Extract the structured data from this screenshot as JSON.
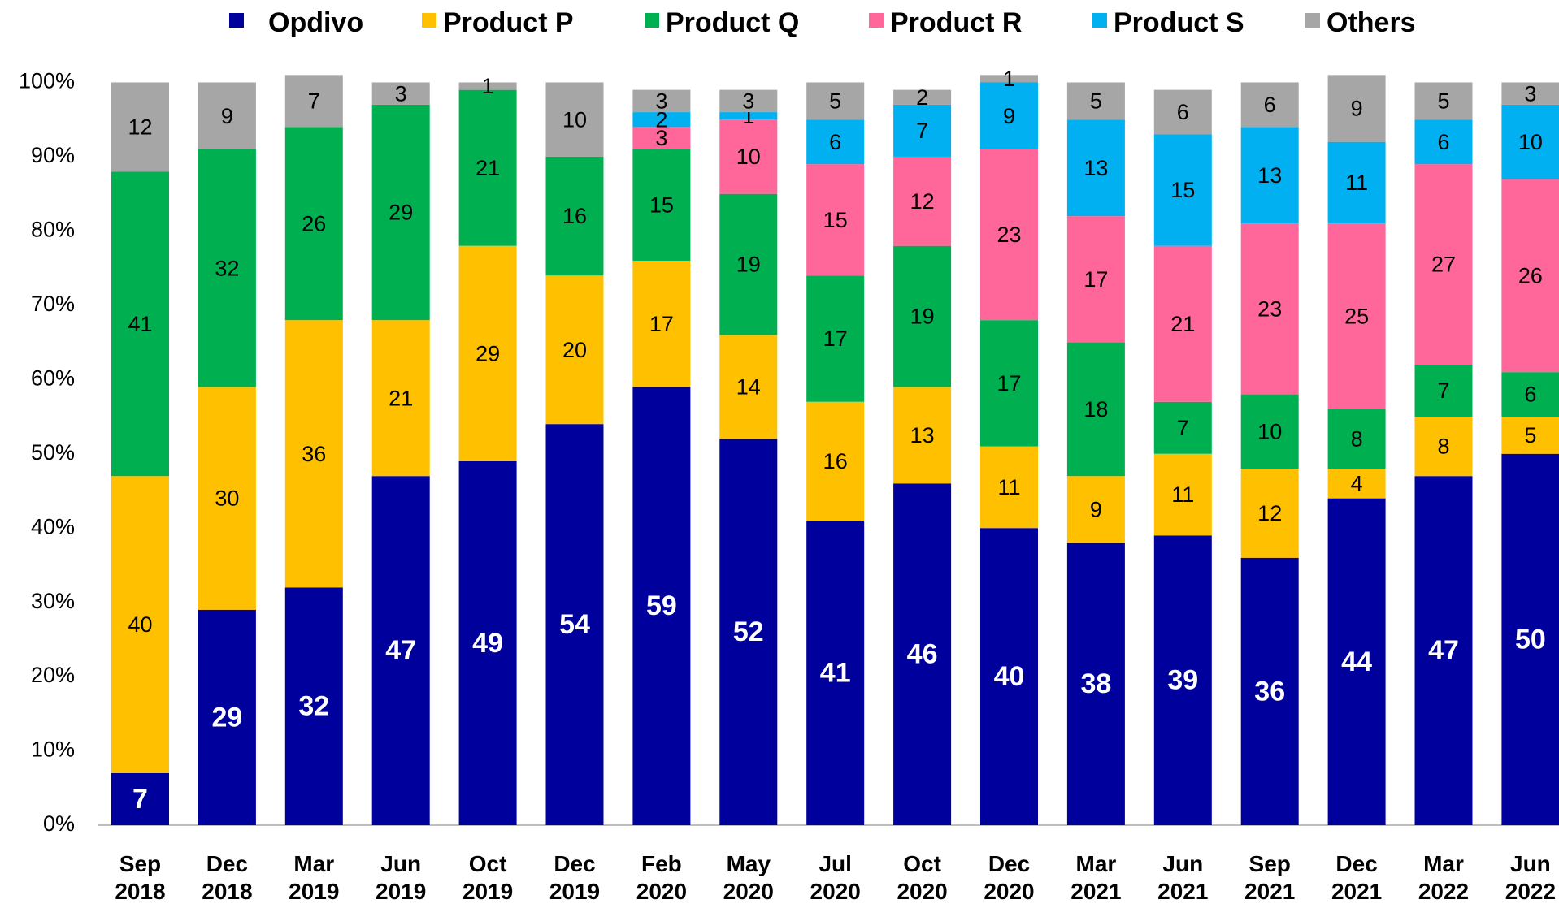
{
  "chart_data": {
    "type": "stacked_bar",
    "categories": [
      "Sep 2018",
      "Dec 2018",
      "Mar 2019",
      "Jun 2019",
      "Oct 2019",
      "Dec 2019",
      "Feb 2020",
      "May 2020",
      "Jul 2020",
      "Oct 2020",
      "Dec 2020",
      "Mar 2021",
      "Jun 2021",
      "Sep 2021",
      "Dec 2021",
      "Mar 2022",
      "Jun 2022"
    ],
    "series": [
      {
        "name": "Opdivo",
        "color": "#00009c",
        "values": [
          7,
          29,
          32,
          47,
          49,
          54,
          59,
          52,
          41,
          46,
          40,
          38,
          39,
          36,
          44,
          47,
          50
        ]
      },
      {
        "name": "Product P",
        "color": "#ffc000",
        "values": [
          40,
          30,
          36,
          21,
          29,
          20,
          17,
          14,
          16,
          13,
          11,
          9,
          11,
          12,
          4,
          8,
          5
        ]
      },
      {
        "name": "Product Q",
        "color": "#00b050",
        "values": [
          41,
          32,
          26,
          29,
          21,
          16,
          15,
          19,
          17,
          19,
          17,
          18,
          7,
          10,
          8,
          7,
          6
        ]
      },
      {
        "name": "Product R",
        "color": "#ff6699",
        "values": [
          null,
          null,
          null,
          null,
          null,
          null,
          3,
          10,
          15,
          12,
          23,
          17,
          21,
          23,
          25,
          27,
          26
        ]
      },
      {
        "name": "Product S",
        "color": "#00b0f0",
        "values": [
          null,
          null,
          null,
          null,
          null,
          null,
          2,
          1,
          6,
          7,
          9,
          13,
          15,
          13,
          11,
          6,
          10
        ]
      },
      {
        "name": "Others",
        "color": "#a6a6a6",
        "values": [
          12,
          9,
          7,
          3,
          1,
          10,
          3,
          3,
          5,
          2,
          1,
          5,
          6,
          6,
          9,
          5,
          3
        ]
      }
    ],
    "ylim": [
      0,
      100
    ],
    "yticks": [
      {
        "value": 0,
        "label": "0%"
      },
      {
        "value": 10,
        "label": "10%"
      },
      {
        "value": 20,
        "label": "20%"
      },
      {
        "value": 30,
        "label": "30%"
      },
      {
        "value": 40,
        "label": "40%"
      },
      {
        "value": 50,
        "label": "50%"
      },
      {
        "value": 60,
        "label": "60%"
      },
      {
        "value": 70,
        "label": "70%"
      },
      {
        "value": 80,
        "label": "80%"
      },
      {
        "value": 90,
        "label": "90%"
      },
      {
        "value": 100,
        "label": "100%"
      }
    ],
    "legend": "top",
    "grid": false
  }
}
